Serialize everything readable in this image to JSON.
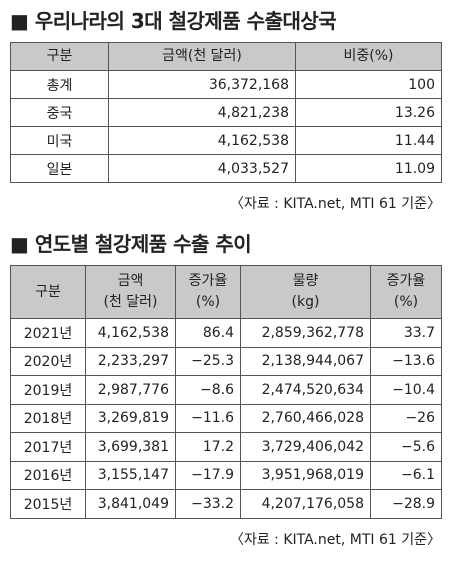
{
  "sections": [
    {
      "title": "■ 우리나라의 3대 철강제품 수출대상국",
      "table": {
        "header": [
          "구분",
          "금액(천 달러)",
          "비중(%)"
        ],
        "rows": [
          [
            "총계",
            "36,372,168",
            "100"
          ],
          [
            "중국",
            "4,821,238",
            "13.26"
          ],
          [
            "미국",
            "4,162,538",
            "11.44"
          ],
          [
            "일본",
            "4,033,527",
            "11.09"
          ]
        ]
      },
      "source": "〈자료 : KITA.net, MTI 61 기준〉"
    },
    {
      "title": "■ 연도별 철강제품 수출 추이",
      "table": {
        "header": [
          "구분",
          "금액\n(천 달러)",
          "증가율\n(%)",
          "물량\n(kg)",
          "증가율\n(%)"
        ],
        "rows": [
          [
            "2021년",
            "4,162,538",
            "86.4",
            "2,859,362,778",
            "33.7"
          ],
          [
            "2020년",
            "2,233,297",
            "−25.3",
            "2,138,944,067",
            "−13.6"
          ],
          [
            "2019년",
            "2,987,776",
            "−8.6",
            "2,474,520,634",
            "−10.4"
          ],
          [
            "2018년",
            "3,269,819",
            "−11.6",
            "2,760,466,028",
            "−26"
          ],
          [
            "2017년",
            "3,699,381",
            "17.2",
            "3,729,406,042",
            "−5.6"
          ],
          [
            "2016년",
            "3,155,147",
            "−17.9",
            "3,951,968,019",
            "−6.1"
          ],
          [
            "2015년",
            "3,841,049",
            "−33.2",
            "4,207,176,058",
            "−28.9"
          ]
        ]
      },
      "source": "〈자료 : KITA.net, MTI 61 기준〉"
    }
  ]
}
